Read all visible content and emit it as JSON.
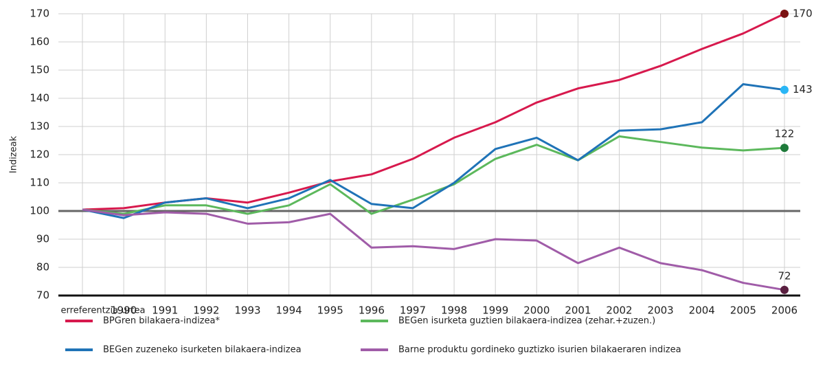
{
  "chart_data": {
    "type": "line",
    "y_label": "Indizeak",
    "categories": [
      "erreferentzia-urtea",
      "1990",
      "1991",
      "1992",
      "1993",
      "1994",
      "1995",
      "1996",
      "1997",
      "1998",
      "1999",
      "2000",
      "2001",
      "2002",
      "2003",
      "2004",
      "2005",
      "2006"
    ],
    "ylim": [
      70,
      170
    ],
    "yticks": [
      70,
      80,
      90,
      100,
      110,
      120,
      130,
      140,
      150,
      160,
      170
    ],
    "reference_line": 100,
    "grid": true,
    "legend": "bottom",
    "series": [
      {
        "name": "BPGren bilakaera-indizea*",
        "color": "#d7194d",
        "marker_color": "#7a1212",
        "values": [
          100.5,
          101,
          103,
          104.5,
          103,
          106.5,
          110.5,
          113,
          118.5,
          126,
          131.5,
          138.5,
          143.5,
          146.5,
          151.5,
          157.5,
          163,
          170
        ],
        "value_labels": [
          null,
          null,
          null,
          null,
          null,
          null,
          null,
          null,
          null,
          null,
          null,
          null,
          null,
          null,
          null,
          null,
          null,
          "170"
        ]
      },
      {
        "name": "BEGen isurketa guztien bilakaera-indizea (zehar.+zuzen.)",
        "color": "#5cb85c",
        "marker_color": "#1e7a3a",
        "values": [
          100.5,
          99,
          102,
          102,
          99,
          102,
          109.5,
          99,
          104,
          109.5,
          118.5,
          123.5,
          118,
          126.5,
          124.5,
          122.5,
          121.5,
          122.4
        ],
        "value_labels": [
          null,
          null,
          null,
          null,
          null,
          null,
          null,
          null,
          null,
          null,
          null,
          null,
          null,
          null,
          null,
          null,
          null,
          "122"
        ]
      },
      {
        "name": "BEGen zuzeneko isurketen bilakaera-indizea",
        "color": "#1f73b7",
        "marker_color": "#29b6f6",
        "values": [
          100.5,
          97.5,
          103,
          104.5,
          101,
          104.5,
          111,
          102.5,
          101,
          110,
          122,
          126,
          118,
          128.5,
          129,
          131.5,
          145,
          143
        ],
        "value_labels": [
          null,
          null,
          null,
          null,
          null,
          null,
          null,
          null,
          null,
          null,
          null,
          null,
          null,
          null,
          null,
          null,
          null,
          "143"
        ]
      },
      {
        "name": "Barne produktu gordineko guztizko isurien bilakaeraren indizea",
        "color": "#a05ca8",
        "marker_color": "#5a2040",
        "values": [
          100.5,
          98.5,
          99.5,
          99,
          95.5,
          96,
          99,
          87,
          87.5,
          86.5,
          90,
          89.5,
          81.5,
          87,
          81.5,
          79,
          74.5,
          72
        ],
        "value_labels": [
          null,
          null,
          null,
          null,
          null,
          null,
          null,
          null,
          null,
          null,
          null,
          null,
          null,
          null,
          null,
          null,
          null,
          "72"
        ]
      }
    ]
  }
}
